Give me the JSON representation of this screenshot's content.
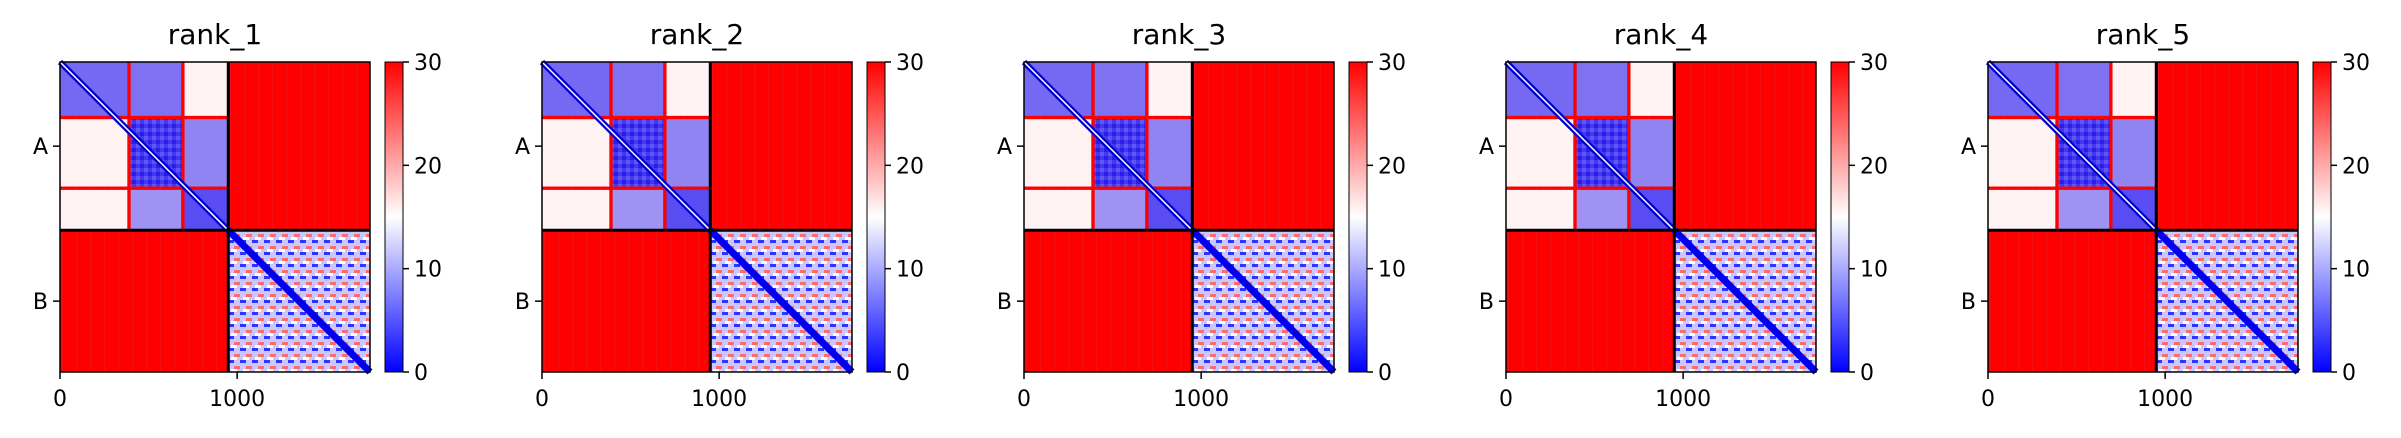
{
  "chart_data": [
    {
      "type": "heatmap",
      "title": "rank_1",
      "xticks": [
        "0",
        "1000"
      ],
      "yticks": [
        "A",
        "B"
      ],
      "colorbar": {
        "ticks": [
          "0",
          "10",
          "20",
          "30"
        ],
        "range": [
          0,
          30
        ]
      },
      "x_range": [
        0,
        1750
      ],
      "boundary": 950
    },
    {
      "type": "heatmap",
      "title": "rank_2",
      "xticks": [
        "0",
        "1000"
      ],
      "yticks": [
        "A",
        "B"
      ],
      "colorbar": {
        "ticks": [
          "0",
          "10",
          "20",
          "30"
        ],
        "range": [
          0,
          30
        ]
      },
      "x_range": [
        0,
        1750
      ],
      "boundary": 950
    },
    {
      "type": "heatmap",
      "title": "rank_3",
      "xticks": [
        "0",
        "1000"
      ],
      "yticks": [
        "A",
        "B"
      ],
      "colorbar": {
        "ticks": [
          "0",
          "10",
          "20",
          "30"
        ],
        "range": [
          0,
          30
        ]
      },
      "x_range": [
        0,
        1750
      ],
      "boundary": 950
    },
    {
      "type": "heatmap",
      "title": "rank_4",
      "xticks": [
        "0",
        "1000"
      ],
      "yticks": [
        "A",
        "B"
      ],
      "colorbar": {
        "ticks": [
          "0",
          "10",
          "20",
          "30"
        ],
        "range": [
          0,
          30
        ]
      },
      "x_range": [
        0,
        1750
      ],
      "boundary": 950
    },
    {
      "type": "heatmap",
      "title": "rank_5",
      "xticks": [
        "0",
        "1000"
      ],
      "yticks": [
        "A",
        "B"
      ],
      "colorbar": {
        "ticks": [
          "0",
          "10",
          "20",
          "30"
        ],
        "range": [
          0,
          30
        ]
      },
      "x_range": [
        0,
        1750
      ],
      "boundary": 950
    }
  ],
  "colors": {
    "low": "#0000ff",
    "mid": "#ffffff",
    "high": "#ff0000"
  }
}
